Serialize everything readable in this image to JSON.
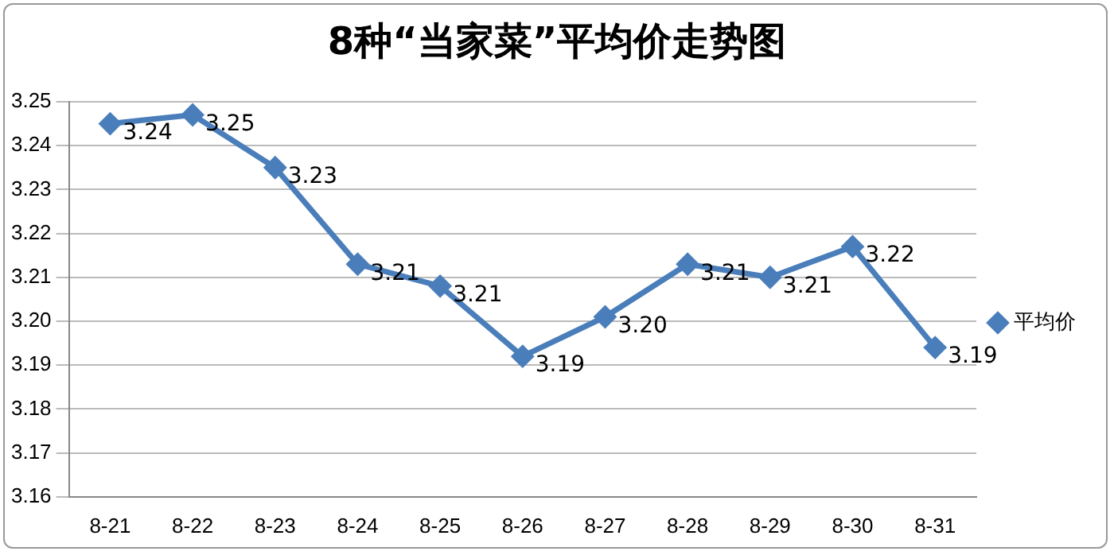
{
  "chart_data": {
    "type": "line",
    "title": "8种“当家菜”平均价走势图",
    "categories": [
      "8-21",
      "8-22",
      "8-23",
      "8-24",
      "8-25",
      "8-26",
      "8-27",
      "8-28",
      "8-29",
      "8-30",
      "8-31"
    ],
    "series": [
      {
        "name": "平均价",
        "color": "#4a7ebb",
        "values": [
          3.245,
          3.247,
          3.235,
          3.213,
          3.208,
          3.192,
          3.201,
          3.213,
          3.21,
          3.217,
          3.194
        ],
        "value_labels": [
          "3.24",
          "3.25",
          "3.23",
          "3.21",
          "3.21",
          "3.19",
          "3.20",
          "3.21",
          "3.21",
          "3.22",
          "3.19"
        ]
      }
    ],
    "ylim": [
      3.16,
      3.25
    ],
    "yticks": [
      3.16,
      3.17,
      3.18,
      3.19,
      {
        "value": 3.2,
        "label": "3.20"
      },
      3.21,
      3.22,
      3.23,
      3.24,
      3.25
    ],
    "grid": "y",
    "legend": "right",
    "marker": "diamond",
    "line_style": "solid"
  }
}
